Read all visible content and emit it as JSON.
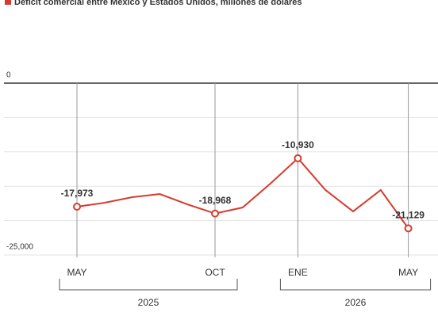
{
  "chart_data": {
    "type": "line",
    "title": "Déficit comercial entre México y Estados Unidos, millones de dólares",
    "categories": [
      "MAY",
      null,
      null,
      null,
      null,
      "OCT",
      null,
      null,
      "ENE",
      null,
      null,
      null,
      "MAY"
    ],
    "groups": [
      {
        "label": "2025",
        "start": 0,
        "end": 5
      },
      {
        "label": "2026",
        "start": 8,
        "end": 12
      }
    ],
    "series": [
      {
        "name": "Déficit comercial",
        "color": "#d9392c",
        "values": [
          -17973,
          -17400,
          -16590,
          -16130,
          -17630,
          -18968,
          -18090,
          -14630,
          -10930,
          -15550,
          -18660,
          -15550,
          -21129
        ],
        "value_labels": [
          "-17,973",
          null,
          null,
          null,
          null,
          "-18,968",
          null,
          null,
          "-10,930",
          null,
          null,
          null,
          "-21,129"
        ]
      }
    ],
    "ylim": [
      -25000,
      0
    ],
    "yticks": [
      0,
      {
        "value": -25000,
        "label": "-25,000"
      }
    ],
    "gridticks": [
      -5000,
      -10000,
      -15000,
      -20000
    ],
    "grid": true
  }
}
